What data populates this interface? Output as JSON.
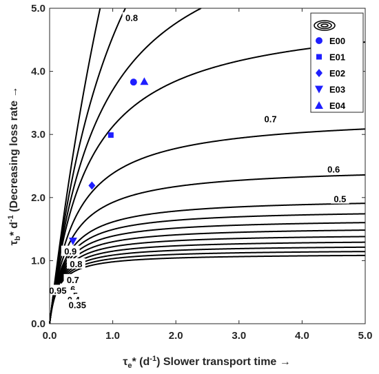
{
  "chart_data": {
    "type": "contour",
    "xlim": [
      0,
      5
    ],
    "ylim": [
      0,
      5
    ],
    "x_ticks": [
      "0.0",
      "1.0",
      "2.0",
      "3.0",
      "4.0",
      "5.0"
    ],
    "y_ticks": [
      "0.0",
      "1.0",
      "2.0",
      "3.0",
      "4.0",
      "5.0"
    ],
    "xlabel": {
      "sym": "τ",
      "sub": "e",
      "rest": "* (d",
      "sup": "-1",
      "tail": ") Slower transport time →"
    },
    "ylabel": {
      "sym": "τ",
      "sub": "b",
      "rest": "* d",
      "sup": "-1",
      "tail": " (Decreasing loss rate →"
    },
    "grid": false,
    "colors": {
      "contour": "#000000",
      "markers": "#1f1fff",
      "axes": "#262626"
    },
    "contour_levels": [
      0.1,
      0.15,
      0.2,
      0.25,
      0.3,
      0.35,
      0.4,
      0.45,
      0.5,
      0.6,
      0.7,
      0.8,
      0.85,
      0.9,
      0.95
    ],
    "contour_labels": [
      {
        "text": "0.8",
        "x": 1.3,
        "y": 4.85
      },
      {
        "text": "0.7",
        "x": 3.5,
        "y": 3.25
      },
      {
        "text": "0.6",
        "x": 4.5,
        "y": 2.45
      },
      {
        "text": "0.5",
        "x": 4.6,
        "y": 1.98
      },
      {
        "text": "0.9",
        "x": 0.33,
        "y": 1.15
      },
      {
        "text": "0.8",
        "x": 0.42,
        "y": 0.95
      },
      {
        "text": "0.7",
        "x": 0.37,
        "y": 0.7
      },
      {
        "text": "0.6",
        "x": 0.31,
        "y": 0.55
      },
      {
        "text": "0.5",
        "x": 0.35,
        "y": 0.45
      },
      {
        "text": "0.4",
        "x": 0.38,
        "y": 0.38
      },
      {
        "text": "0.95",
        "x": 0.13,
        "y": 0.53
      },
      {
        "text": "0.35",
        "x": 0.44,
        "y": 0.3
      }
    ],
    "series": [
      {
        "name": "E00",
        "marker": "circle",
        "x": 1.33,
        "y": 3.83
      },
      {
        "name": "E01",
        "marker": "square",
        "x": 0.97,
        "y": 2.99
      },
      {
        "name": "E02",
        "marker": "diamond",
        "x": 0.67,
        "y": 2.19
      },
      {
        "name": "E03",
        "marker": "triangle-down",
        "x": 0.37,
        "y": 1.31
      },
      {
        "name": "E04",
        "marker": "triangle-up",
        "x": 1.5,
        "y": 3.84
      }
    ],
    "legend": {
      "position": "top-right",
      "icon": "contour-rings-icon"
    }
  }
}
